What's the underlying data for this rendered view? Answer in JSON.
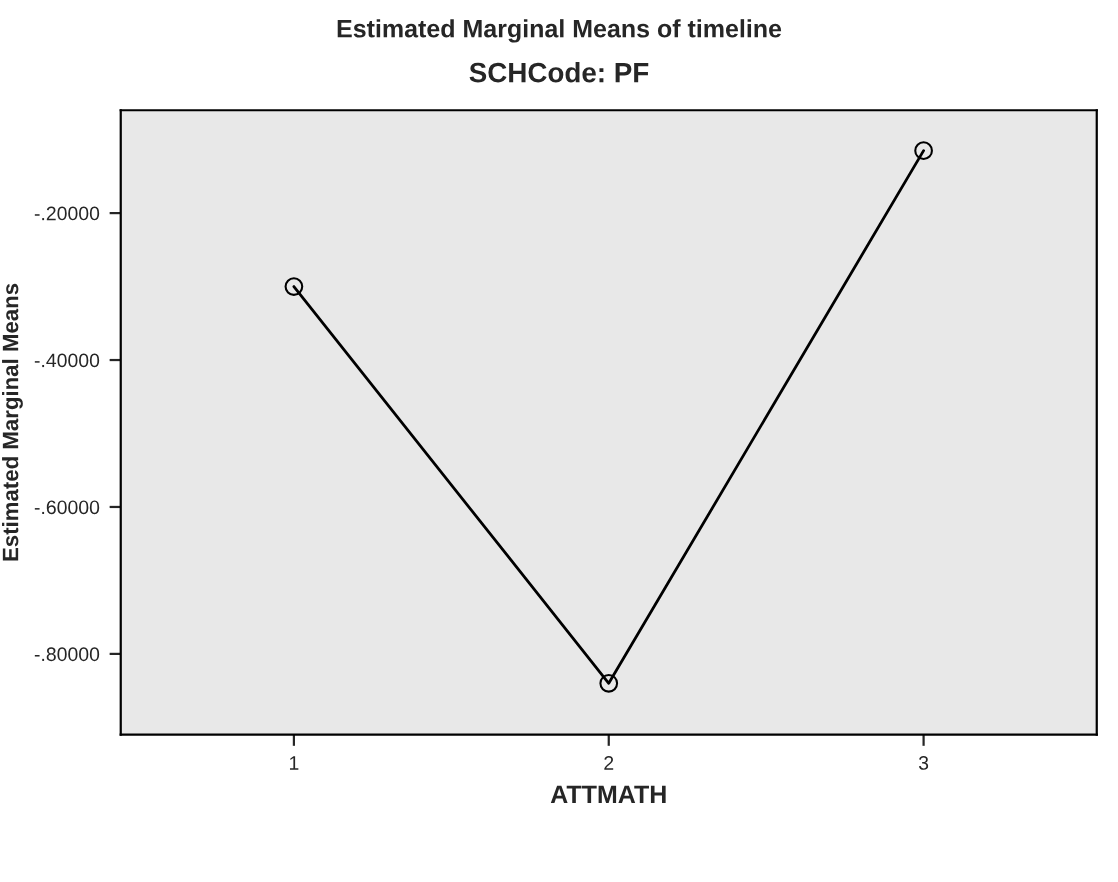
{
  "chart_data": {
    "type": "line",
    "title": "Estimated Marginal Means of timeline",
    "subtitle": "SCHCode: PF",
    "xlabel": "ATTMATH",
    "ylabel": "Estimated Marginal Means",
    "categories": [
      "1",
      "2",
      "3"
    ],
    "series": [
      {
        "color": "#000000",
        "values": [
          -0.3,
          -0.84,
          -0.115
        ]
      }
    ],
    "ylim": [
      -0.91,
      -0.06
    ],
    "yticks": [
      {
        "value": -0.8,
        "label": "-.80000"
      },
      {
        "value": -0.6,
        "label": "-.60000"
      },
      {
        "value": -0.4,
        "label": "-.40000"
      },
      {
        "value": -0.2,
        "label": "-.20000"
      }
    ],
    "marker": "circle",
    "line_style": "solid",
    "grid": false,
    "legend": false
  }
}
